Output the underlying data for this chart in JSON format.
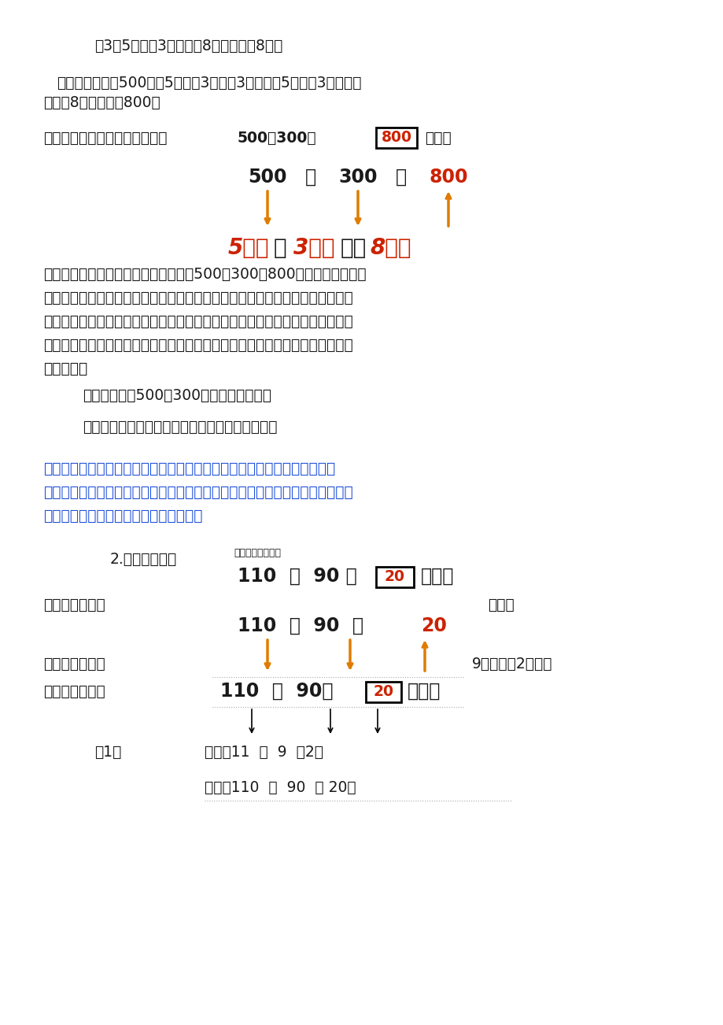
{
  "bg_color": "#ffffff",
  "text_color": "#1a1a1a",
  "orange_color": "#e07b00",
  "red_color": "#cc2200",
  "blue_color": "#1e4fd8",
  "dark_color": "#222222",
  "line1": "（3）5个百加3个百等于8个百也就是8百。",
  "line2a": "强调算法：因为500就是5个百，3百就是3个百，而5个百和3个百合起",
  "line2b": "来等于8个百也就是800。",
  "line3": "学生汇报完成后教师课件展示：",
  "teacher_sum_line1": "教师总结：我们用不同的方法计算出了500＋300＝800，其中后两种方法",
  "teacher_sum_line2": "是整百数加整百数的口算方法，也是我们这节课要重点掌握的内容，在我们口算",
  "teacher_sum_line3": "时，这两种方法你喜欢哪种方法就用哪种方法。现在我们学会了口算几百加几百",
  "teacher_sum_line4": "的口算方法，那几百减几百的口算方法你能不能根据我们刚才学习的过程独立总",
  "teacher_sum_line5": "结出来呢？",
  "try_line": "试一试：口算500－300＝？（课件出示）",
  "think_line": "独立思考，汇报展示，汇报时重点说出口算方法。",
  "design_line1": "【设计意图】学生通过观察情境图，感受数学与生活的联系，感受数在生活",
  "design_line2": "的普遍存在，通过试一试，把口算几百加几百的口算方法，迁移到几百减几百的",
  "design_line3": "口算方法，培养了学生的迁移类推能力。"
}
